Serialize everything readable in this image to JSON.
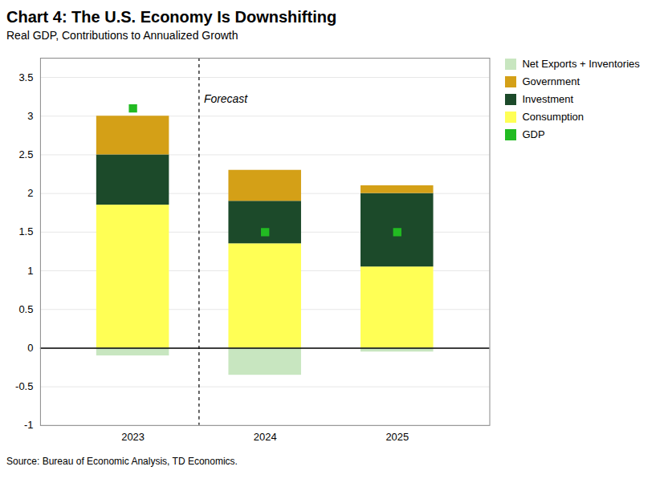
{
  "chart_data": {
    "type": "bar",
    "stacked": true,
    "title": "Chart 4: The U.S. Economy Is Downshifting",
    "subtitle": "Real GDP, Contributions to Annualized Growth",
    "source": "Source: Bureau of Economic Analysis, TD Economics.",
    "categories": [
      "2023",
      "2024",
      "2025"
    ],
    "series": [
      {
        "name": "Consumption",
        "color": "#FFFF55",
        "values": [
          1.85,
          1.35,
          1.05
        ]
      },
      {
        "name": "Investment",
        "color": "#1C4A2A",
        "values": [
          0.65,
          0.55,
          0.95
        ]
      },
      {
        "name": "Government",
        "color": "#D4A017",
        "values": [
          0.5,
          0.4,
          0.1
        ]
      },
      {
        "name": "Net Exports + Inventories",
        "color": "#C8E6C0",
        "values": [
          -0.1,
          -0.35,
          -0.05
        ]
      },
      {
        "name": "GDP",
        "type": "scatter",
        "marker": "square",
        "color": "#22BB22",
        "values": [
          3.1,
          1.5,
          1.5
        ]
      }
    ],
    "annotations": [
      {
        "text": "Forecast",
        "x": 0.5,
        "y": 3.28,
        "line_style": "dashed"
      }
    ],
    "ylim": [
      -1.0,
      3.75
    ],
    "yticks": [
      -1,
      -0.5,
      0,
      0.5,
      1,
      1.5,
      2,
      2.5,
      3,
      3.5
    ],
    "grid": true,
    "legend": "upper right"
  }
}
